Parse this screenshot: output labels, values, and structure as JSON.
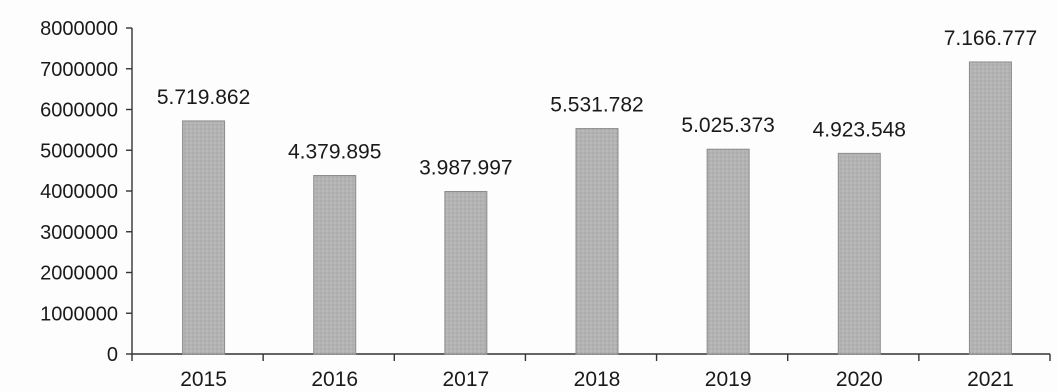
{
  "chart_data": {
    "type": "bar",
    "title": "",
    "xlabel": "",
    "ylabel": "",
    "categories": [
      "2015",
      "2016",
      "2017",
      "2018",
      "2019",
      "2020",
      "2021"
    ],
    "values": [
      5719862,
      4379895,
      3987997,
      5531782,
      5025373,
      4923548,
      7166777
    ],
    "data_labels": [
      "5.719.862",
      "4.379.895",
      "3.987.997",
      "5.531.782",
      "5.025.373",
      "4.923.548",
      "7.166.777"
    ],
    "ylim": [
      0,
      8000000
    ],
    "yticks": [
      0,
      1000000,
      2000000,
      3000000,
      4000000,
      5000000,
      6000000,
      7000000,
      8000000
    ],
    "ytick_labels": [
      "0",
      "1000000",
      "2000000",
      "3000000",
      "4000000",
      "5000000",
      "6000000",
      "7000000",
      "8000000"
    ],
    "grid": false,
    "legend": "none",
    "colors": {
      "bar_fill": "#b3b3b3",
      "axis": "#333333",
      "text": "#1a1a1a",
      "background": "#fdfdfd"
    }
  }
}
